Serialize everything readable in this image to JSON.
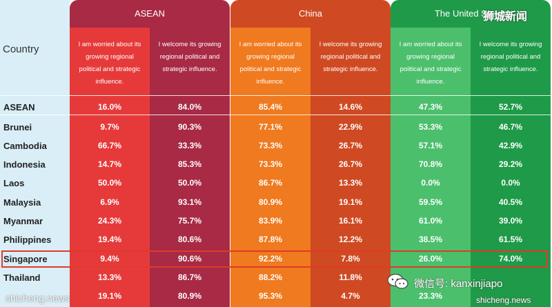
{
  "chart_data": {
    "type": "table",
    "row_header": "Country",
    "groups": [
      {
        "name": "ASEAN",
        "colors": [
          "#e63a3a",
          "#a82a45"
        ]
      },
      {
        "name": "China",
        "colors": [
          "#f07a1f",
          "#cf4a22"
        ]
      },
      {
        "name": "The United States",
        "colors": [
          "#4cbf6d",
          "#1f9a48"
        ]
      }
    ],
    "subheaders": {
      "worried": "I am worried about its growing regional political and strategic influence.",
      "welcome": "I welcome its growing regional political and strategic influence."
    },
    "highlight_row": "Singapore",
    "rows": [
      {
        "country": "ASEAN",
        "values": [
          "16.0%",
          "84.0%",
          "85.4%",
          "14.6%",
          "47.3%",
          "52.7%"
        ]
      },
      {
        "country": "Brunei",
        "values": [
          "9.7%",
          "90.3%",
          "77.1%",
          "22.9%",
          "53.3%",
          "46.7%"
        ]
      },
      {
        "country": "Cambodia",
        "values": [
          "66.7%",
          "33.3%",
          "73.3%",
          "26.7%",
          "57.1%",
          "42.9%"
        ]
      },
      {
        "country": "Indonesia",
        "values": [
          "14.7%",
          "85.3%",
          "73.3%",
          "26.7%",
          "70.8%",
          "29.2%"
        ]
      },
      {
        "country": "Laos",
        "values": [
          "50.0%",
          "50.0%",
          "86.7%",
          "13.3%",
          "0.0%",
          "0.0%"
        ]
      },
      {
        "country": "Malaysia",
        "values": [
          "6.9%",
          "93.1%",
          "80.9%",
          "19.1%",
          "59.5%",
          "40.5%"
        ]
      },
      {
        "country": "Myanmar",
        "values": [
          "24.3%",
          "75.7%",
          "83.9%",
          "16.1%",
          "61.0%",
          "39.0%"
        ]
      },
      {
        "country": "Philippines",
        "values": [
          "19.4%",
          "80.6%",
          "87.8%",
          "12.2%",
          "38.5%",
          "61.5%"
        ]
      },
      {
        "country": "Singapore",
        "values": [
          "9.4%",
          "90.6%",
          "92.2%",
          "7.8%",
          "26.0%",
          "74.0%"
        ]
      },
      {
        "country": "Thailand",
        "values": [
          "13.3%",
          "86.7%",
          "88.2%",
          "11.8%",
          "",
          ""
        ]
      },
      {
        "country": "",
        "values": [
          "19.1%",
          "80.9%",
          "95.3%",
          "4.7%",
          "23.3%",
          ""
        ]
      }
    ]
  },
  "watermarks": {
    "top_right": "狮城新闻",
    "bottom_left": "shicheng.news",
    "wechat_id": "微信号: kanxinjiapo",
    "bottom_right": "shicheng.news"
  }
}
